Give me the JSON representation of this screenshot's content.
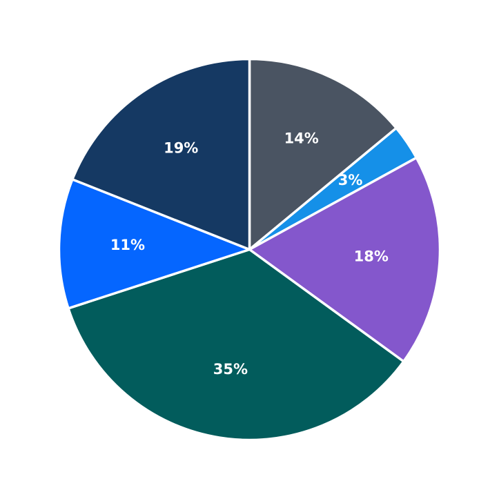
{
  "chart_data": {
    "type": "pie",
    "title": "",
    "legend": "none",
    "start_angle": "12 o'clock",
    "direction": "clockwise",
    "slices": [
      {
        "label": "14%",
        "value": 14,
        "color": "#4a5462"
      },
      {
        "label": "3%",
        "value": 3,
        "color": "#1590e8"
      },
      {
        "label": "18%",
        "value": 18,
        "color": "#8457cc"
      },
      {
        "label": "35%",
        "value": 35,
        "color": "#025c5c"
      },
      {
        "label": "11%",
        "value": 11,
        "color": "#0566ff"
      },
      {
        "label": "19%",
        "value": 19,
        "color": "#153963"
      }
    ]
  }
}
